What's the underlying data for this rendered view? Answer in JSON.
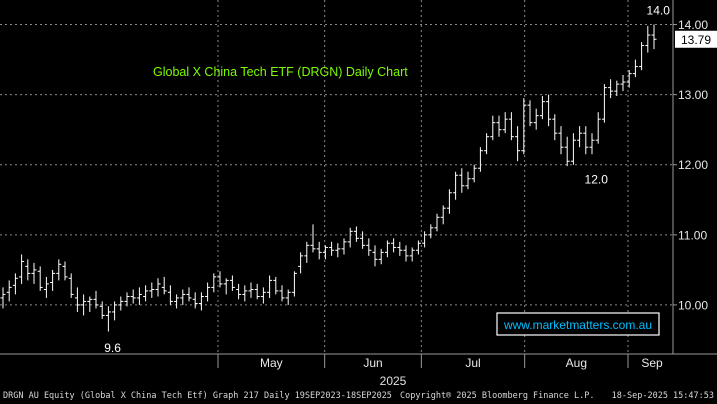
{
  "chart_data": {
    "type": "ohlc",
    "title": "Global X China Tech ETF (DRGN) Daily Chart",
    "title_color": "#7CFC00",
    "price_color": "#ffffff",
    "grid": true,
    "y_axis": {
      "position": "right",
      "ylim": [
        9.3,
        14.35
      ],
      "ticks": [
        "10.00",
        "11.00",
        "12.00",
        "13.00",
        "14.00"
      ]
    },
    "x_axis": {
      "ticks": [
        {
          "label": "May",
          "date": "2025-05-01"
        },
        {
          "label": "Jun",
          "date": "2025-06-02"
        },
        {
          "label": "Jul",
          "date": "2025-07-01"
        },
        {
          "label": "Aug",
          "date": "2025-08-01"
        },
        {
          "label": "Sep",
          "date": "2025-09-01"
        }
      ],
      "year_label": "2025"
    },
    "last_price": {
      "value": 13.79,
      "label": "13.79"
    },
    "annotations": [
      {
        "text": "14.0",
        "value": 14.0,
        "bar": 106
      },
      {
        "text": "12.0",
        "value": 12.0,
        "bar": 96
      },
      {
        "text": "9.6",
        "value": 9.6,
        "bar": 18
      }
    ],
    "watermark": "www.marketmatters.com.au",
    "series": [
      {
        "values": [
          [
            10.1,
            10.25,
            9.95,
            10.15
          ],
          [
            10.18,
            10.35,
            10.05,
            10.25
          ],
          [
            10.28,
            10.45,
            10.15,
            10.38
          ],
          [
            10.4,
            10.72,
            10.3,
            10.62
          ],
          [
            10.55,
            10.65,
            10.35,
            10.45
          ],
          [
            10.45,
            10.6,
            10.3,
            10.5
          ],
          [
            10.48,
            10.55,
            10.2,
            10.25
          ],
          [
            10.22,
            10.4,
            10.1,
            10.3
          ],
          [
            10.32,
            10.5,
            10.2,
            10.45
          ],
          [
            10.45,
            10.65,
            10.35,
            10.58
          ],
          [
            10.55,
            10.62,
            10.35,
            10.4
          ],
          [
            10.38,
            10.45,
            10.1,
            10.15
          ],
          [
            10.1,
            10.25,
            9.9,
            10.0
          ],
          [
            10.0,
            10.15,
            9.85,
            10.05
          ],
          [
            10.05,
            10.12,
            9.9,
            10.08
          ],
          [
            10.08,
            10.2,
            9.95,
            10.0
          ],
          [
            9.98,
            10.05,
            9.8,
            9.85
          ],
          [
            9.85,
            9.98,
            9.62,
            9.9
          ],
          [
            9.9,
            10.05,
            9.78,
            10.0
          ],
          [
            10.0,
            10.12,
            9.92,
            10.05
          ],
          [
            10.05,
            10.18,
            9.98,
            10.12
          ],
          [
            10.12,
            10.22,
            10.02,
            10.1
          ],
          [
            10.1,
            10.25,
            10.0,
            10.15
          ],
          [
            10.12,
            10.28,
            10.05,
            10.2
          ],
          [
            10.2,
            10.32,
            10.1,
            10.22
          ],
          [
            10.22,
            10.38,
            10.12,
            10.3
          ],
          [
            10.25,
            10.4,
            10.15,
            10.2
          ],
          [
            10.18,
            10.28,
            10.0,
            10.05
          ],
          [
            10.05,
            10.15,
            9.95,
            10.1
          ],
          [
            10.1,
            10.22,
            10.0,
            10.15
          ],
          [
            10.15,
            10.25,
            10.05,
            10.1
          ],
          [
            10.08,
            10.18,
            9.95,
            10.02
          ],
          [
            10.02,
            10.18,
            9.92,
            10.12
          ],
          [
            10.12,
            10.32,
            10.05,
            10.25
          ],
          [
            10.25,
            10.45,
            10.18,
            10.4
          ],
          [
            10.4,
            10.48,
            10.25,
            10.3
          ],
          [
            10.3,
            10.38,
            10.15,
            10.35
          ],
          [
            10.35,
            10.42,
            10.2,
            10.25
          ],
          [
            10.22,
            10.3,
            10.08,
            10.15
          ],
          [
            10.15,
            10.28,
            10.05,
            10.2
          ],
          [
            10.2,
            10.32,
            10.1,
            10.22
          ],
          [
            10.22,
            10.3,
            10.08,
            10.12
          ],
          [
            10.12,
            10.25,
            10.02,
            10.18
          ],
          [
            10.18,
            10.42,
            10.1,
            10.35
          ],
          [
            10.35,
            10.4,
            10.15,
            10.2
          ],
          [
            10.2,
            10.28,
            10.05,
            10.1
          ],
          [
            10.1,
            10.22,
            10.0,
            10.18
          ],
          [
            10.18,
            10.48,
            10.12,
            10.45
          ],
          [
            10.55,
            10.75,
            10.45,
            10.7
          ],
          [
            10.7,
            10.9,
            10.6,
            10.85
          ],
          [
            10.85,
            11.15,
            10.75,
            10.8
          ],
          [
            10.8,
            10.9,
            10.65,
            10.75
          ],
          [
            10.75,
            10.85,
            10.65,
            10.82
          ],
          [
            10.82,
            10.9,
            10.7,
            10.78
          ],
          [
            10.78,
            10.88,
            10.68,
            10.8
          ],
          [
            10.8,
            10.95,
            10.72,
            10.9
          ],
          [
            10.9,
            11.1,
            10.82,
            11.05
          ],
          [
            11.05,
            11.12,
            10.9,
            10.95
          ],
          [
            10.95,
            11.05,
            10.8,
            10.85
          ],
          [
            10.85,
            10.95,
            10.7,
            10.78
          ],
          [
            10.75,
            10.85,
            10.55,
            10.65
          ],
          [
            10.65,
            10.8,
            10.58,
            10.75
          ],
          [
            10.75,
            10.92,
            10.68,
            10.88
          ],
          [
            10.88,
            10.95,
            10.75,
            10.82
          ],
          [
            10.82,
            10.9,
            10.7,
            10.78
          ],
          [
            10.78,
            10.85,
            10.62,
            10.7
          ],
          [
            10.7,
            10.82,
            10.62,
            10.78
          ],
          [
            10.78,
            10.92,
            10.72,
            10.88
          ],
          [
            10.88,
            11.05,
            10.82,
            11.0
          ],
          [
            11.0,
            11.15,
            10.95,
            11.1
          ],
          [
            11.1,
            11.3,
            11.05,
            11.25
          ],
          [
            11.25,
            11.42,
            11.15,
            11.38
          ],
          [
            11.38,
            11.65,
            11.3,
            11.6
          ],
          [
            11.6,
            11.9,
            11.5,
            11.85
          ],
          [
            11.85,
            11.95,
            11.6,
            11.7
          ],
          [
            11.7,
            11.9,
            11.65,
            11.8
          ],
          [
            11.8,
            12.0,
            11.75,
            11.95
          ],
          [
            11.95,
            12.25,
            11.9,
            12.2
          ],
          [
            12.2,
            12.45,
            12.15,
            12.4
          ],
          [
            12.4,
            12.7,
            12.35,
            12.6
          ],
          [
            12.6,
            12.7,
            12.4,
            12.5
          ],
          [
            12.5,
            12.75,
            12.45,
            12.65
          ],
          [
            12.65,
            12.75,
            12.35,
            12.4
          ],
          [
            12.4,
            12.55,
            12.05,
            12.2
          ],
          [
            12.2,
            12.95,
            12.15,
            12.85
          ],
          [
            12.85,
            12.92,
            12.55,
            12.6
          ],
          [
            12.6,
            12.8,
            12.5,
            12.7
          ],
          [
            12.7,
            12.98,
            12.65,
            12.9
          ],
          [
            12.9,
            13.0,
            12.55,
            12.65
          ],
          [
            12.65,
            12.72,
            12.35,
            12.45
          ],
          [
            12.45,
            12.55,
            12.15,
            12.25
          ],
          [
            12.25,
            12.4,
            11.98,
            12.05
          ],
          [
            12.05,
            12.45,
            12.0,
            12.35
          ],
          [
            12.35,
            12.55,
            12.25,
            12.45
          ],
          [
            12.45,
            12.55,
            12.15,
            12.25
          ],
          [
            12.25,
            12.45,
            12.15,
            12.35
          ],
          [
            12.35,
            12.75,
            12.3,
            12.65
          ],
          [
            12.65,
            13.15,
            12.6,
            13.1
          ],
          [
            13.1,
            13.22,
            12.95,
            13.05
          ],
          [
            13.05,
            13.2,
            12.98,
            13.15
          ],
          [
            13.15,
            13.28,
            13.05,
            13.18
          ],
          [
            13.18,
            13.35,
            13.1,
            13.3
          ],
          [
            13.3,
            13.5,
            13.25,
            13.4
          ],
          [
            13.4,
            13.75,
            13.35,
            13.7
          ],
          [
            13.7,
            13.98,
            13.6,
            13.85
          ],
          [
            13.85,
            14.0,
            13.65,
            13.79
          ]
        ]
      }
    ]
  },
  "footer": {
    "left": "DRGN AU Equity (Global X China Tech Etf) Graph 217  Daily 19SEP2023-18SEP2025",
    "center": "Copyright® 2025 Bloomberg Finance L.P.",
    "right": "18-Sep-2025 15:47:53"
  }
}
